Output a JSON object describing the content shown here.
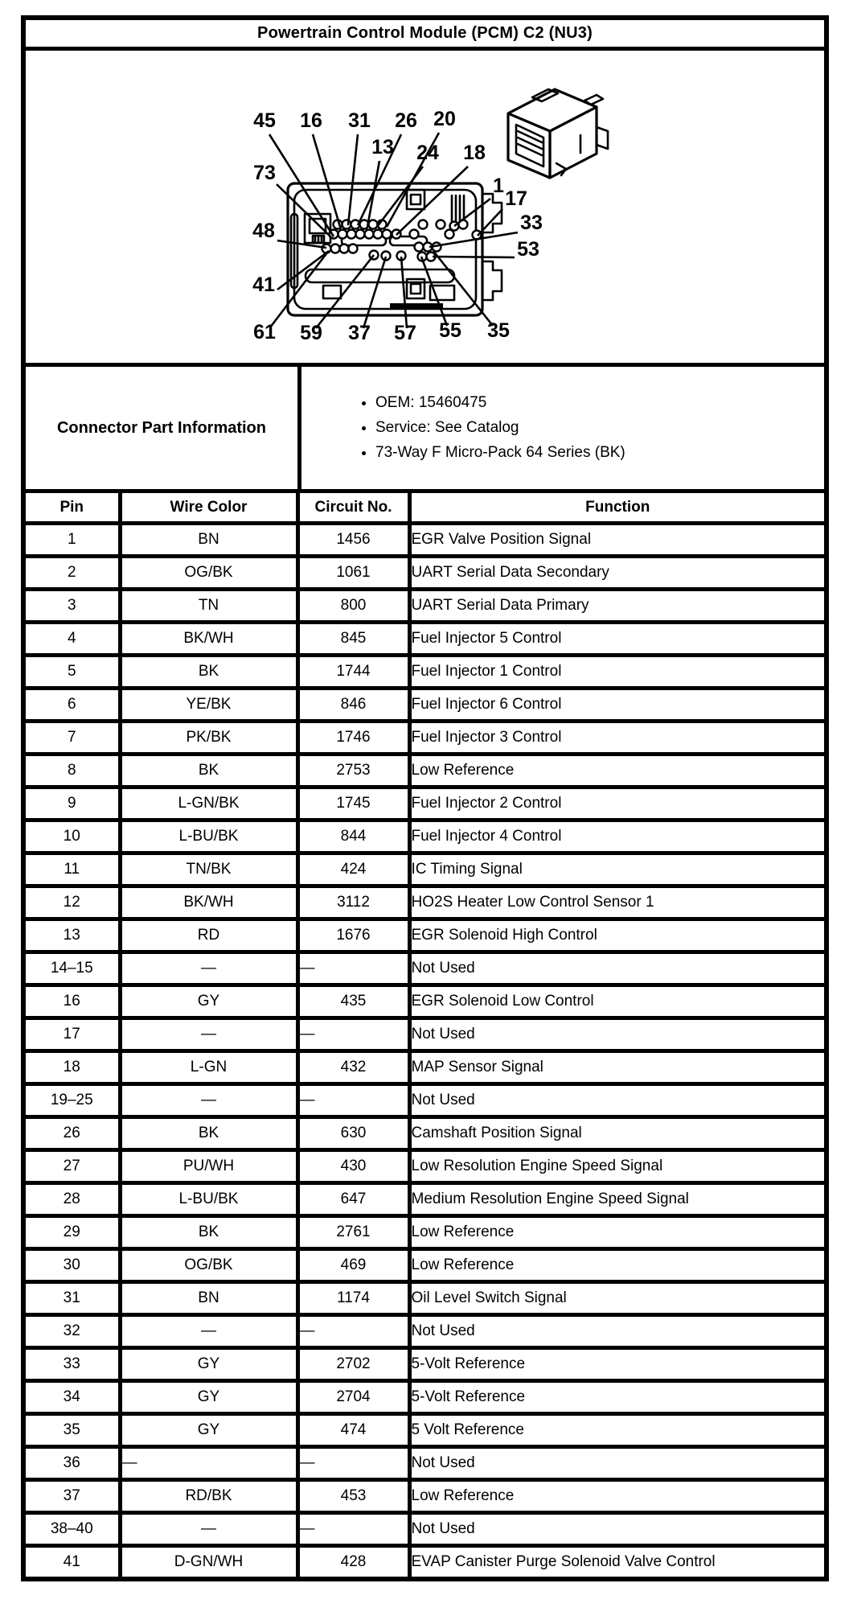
{
  "page_title": "Powertrain Control Module (PCM) C2 (NU3)",
  "connector_part_information": {
    "label": "Connector Part Information",
    "bullets": [
      "OEM: 15460475",
      "Service: See Catalog",
      "73-Way F Micro-Pack 64 Series (BK)"
    ]
  },
  "diagram": {
    "description": "73-way PCM connector face view with numbered pin callouts and 3D connector view",
    "pin_labels": [
      "45",
      "16",
      "31",
      "26",
      "20",
      "13",
      "24",
      "18",
      "73",
      "1",
      "48",
      "17",
      "33",
      "53",
      "41",
      "61",
      "59",
      "37",
      "57",
      "55",
      "35"
    ]
  },
  "table": {
    "headers": [
      "Pin",
      "Wire Color",
      "Circuit No.",
      "Function"
    ],
    "rows": [
      {
        "pin": "1",
        "wire_color": "BN",
        "circuit_no": "1456",
        "function": "EGR Valve Position Signal"
      },
      {
        "pin": "2",
        "wire_color": "OG/BK",
        "circuit_no": "1061",
        "function": "UART Serial Data Secondary"
      },
      {
        "pin": "3",
        "wire_color": "TN",
        "circuit_no": "800",
        "function": "UART Serial Data Primary"
      },
      {
        "pin": "4",
        "wire_color": "BK/WH",
        "circuit_no": "845",
        "function": "Fuel Injector 5 Control"
      },
      {
        "pin": "5",
        "wire_color": "BK",
        "circuit_no": "1744",
        "function": "Fuel Injector 1 Control"
      },
      {
        "pin": "6",
        "wire_color": "YE/BK",
        "circuit_no": "846",
        "function": "Fuel Injector 6 Control"
      },
      {
        "pin": "7",
        "wire_color": "PK/BK",
        "circuit_no": "1746",
        "function": "Fuel Injector 3 Control"
      },
      {
        "pin": "8",
        "wire_color": "BK",
        "circuit_no": "2753",
        "function": "Low Reference"
      },
      {
        "pin": "9",
        "wire_color": "L-GN/BK",
        "circuit_no": "1745",
        "function": "Fuel Injector 2 Control"
      },
      {
        "pin": "10",
        "wire_color": "L-BU/BK",
        "circuit_no": "844",
        "function": "Fuel Injector 4 Control"
      },
      {
        "pin": "11",
        "wire_color": "TN/BK",
        "circuit_no": "424",
        "function": "IC Timing Signal"
      },
      {
        "pin": "12",
        "wire_color": "BK/WH",
        "circuit_no": "3112",
        "function": "HO2S Heater Low Control Sensor 1"
      },
      {
        "pin": "13",
        "wire_color": "RD",
        "circuit_no": "1676",
        "function": "EGR Solenoid High Control"
      },
      {
        "pin": "14–15",
        "wire_color": "—",
        "circuit_no": "—",
        "function": "Not Used"
      },
      {
        "pin": "16",
        "wire_color": "GY",
        "circuit_no": "435",
        "function": "EGR Solenoid Low Control"
      },
      {
        "pin": "17",
        "wire_color": "—",
        "circuit_no": "—",
        "function": "Not Used"
      },
      {
        "pin": "18",
        "wire_color": "L-GN",
        "circuit_no": "432",
        "function": "MAP Sensor Signal"
      },
      {
        "pin": "19–25",
        "wire_color": "—",
        "circuit_no": "—",
        "function": "Not Used"
      },
      {
        "pin": "26",
        "wire_color": "BK",
        "circuit_no": "630",
        "function": "Camshaft Position Signal"
      },
      {
        "pin": "27",
        "wire_color": "PU/WH",
        "circuit_no": "430",
        "function": "Low Resolution Engine Speed Signal"
      },
      {
        "pin": "28",
        "wire_color": "L-BU/BK",
        "circuit_no": "647",
        "function": "Medium Resolution Engine Speed Signal"
      },
      {
        "pin": "29",
        "wire_color": "BK",
        "circuit_no": "2761",
        "function": "Low Reference"
      },
      {
        "pin": "30",
        "wire_color": "OG/BK",
        "circuit_no": "469",
        "function": "Low Reference"
      },
      {
        "pin": "31",
        "wire_color": "BN",
        "circuit_no": "1174",
        "function": "Oil Level Switch Signal"
      },
      {
        "pin": "32",
        "wire_color": "—",
        "circuit_no": "—",
        "function": "Not Used"
      },
      {
        "pin": "33",
        "wire_color": "GY",
        "circuit_no": "2702",
        "function": "5-Volt Reference"
      },
      {
        "pin": "34",
        "wire_color": "GY",
        "circuit_no": "2704",
        "function": "5-Volt Reference"
      },
      {
        "pin": "35",
        "wire_color": "GY",
        "circuit_no": "474",
        "function": "5 Volt Reference"
      },
      {
        "pin": "36",
        "wire_color": "—",
        "circuit_no": "—",
        "function": "Not Used"
      },
      {
        "pin": "37",
        "wire_color": "RD/BK",
        "circuit_no": "453",
        "function": "Low Reference"
      },
      {
        "pin": "38–40",
        "wire_color": "—",
        "circuit_no": "—",
        "function": "Not Used"
      },
      {
        "pin": "41",
        "wire_color": "D-GN/WH",
        "circuit_no": "428",
        "function": "EVAP Canister Purge Solenoid Valve Control"
      }
    ]
  }
}
